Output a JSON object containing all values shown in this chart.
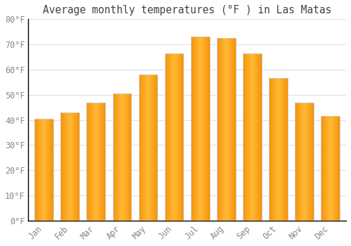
{
  "title": "Average monthly temperatures (°F ) in Las Matas",
  "months": [
    "Jan",
    "Feb",
    "Mar",
    "Apr",
    "May",
    "Jun",
    "Jul",
    "Aug",
    "Sep",
    "Oct",
    "Nov",
    "Dec"
  ],
  "values": [
    40.5,
    43.0,
    47.0,
    50.5,
    58.0,
    66.5,
    73.0,
    72.5,
    66.5,
    56.5,
    47.0,
    41.5
  ],
  "bar_color_center": "#FFB733",
  "bar_color_edge": "#F5920A",
  "ylim": [
    0,
    80
  ],
  "yticks": [
    0,
    10,
    20,
    30,
    40,
    50,
    60,
    70,
    80
  ],
  "background_color": "#FFFFFF",
  "grid_color": "#E0E0E0",
  "title_fontsize": 10.5,
  "tick_fontsize": 8.5,
  "tick_color": "#888888",
  "title_color": "#444444",
  "spine_color": "#000000"
}
